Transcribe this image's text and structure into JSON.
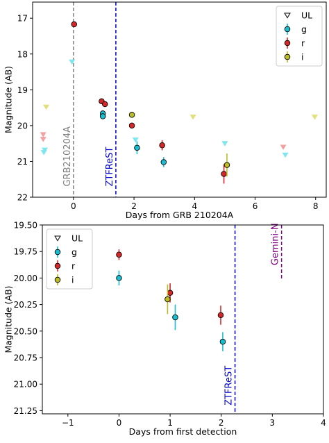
{
  "colors": {
    "g": "#17becf",
    "r": "#d62728",
    "i": "#bcbd22",
    "ul_g": "#7fe6f0",
    "ul_r": "#f2a0a0",
    "ul_i": "#e0e07a",
    "grb_line": "#7f7f7f",
    "ztfrest_line": "#0000cc",
    "gemini_line": "#800080"
  },
  "chart_data": [
    {
      "type": "scatter",
      "xlabel": "Days from GRB 210204A",
      "ylabel": "Magnitude (AB)",
      "xlim": [
        -1.35,
        8.35
      ],
      "ylim": [
        22,
        16.55
      ],
      "y_inverted": true,
      "xticks": [
        0,
        2,
        4,
        6,
        8
      ],
      "yticks": [
        17,
        18,
        19,
        20,
        21,
        22
      ],
      "xtick_labels": [
        "0",
        "2",
        "4",
        "6",
        "8"
      ],
      "ytick_labels": [
        "17",
        "18",
        "19",
        "20",
        "21",
        "22"
      ],
      "legend": {
        "placement": "top-right",
        "entries": [
          {
            "label": "UL",
            "marker": "triangle-down"
          },
          {
            "label": "g",
            "color_key": "g"
          },
          {
            "label": "r",
            "color_key": "r"
          },
          {
            "label": "i",
            "color_key": "i"
          }
        ]
      },
      "vlines": [
        {
          "x": 0,
          "label": "GRB210204A",
          "color_key": "grb_line",
          "style": "dashed",
          "label_y": 21.7
        },
        {
          "x": 1.4,
          "label": "ZTFReST",
          "color_key": "ztfrest_line",
          "style": "dashed",
          "label_y": 21.7
        }
      ],
      "series": [
        {
          "name": "g",
          "color_key": "g",
          "points": [
            {
              "x": 0.97,
              "y": 19.66,
              "err": 0.08
            },
            {
              "x": 0.97,
              "y": 19.74,
              "err": 0.08
            },
            {
              "x": 2.1,
              "y": 20.62,
              "err": 0.18
            },
            {
              "x": 2.98,
              "y": 21.02,
              "err": 0.14
            }
          ]
        },
        {
          "name": "r",
          "color_key": "r",
          "points": [
            {
              "x": 0.02,
              "y": 17.17,
              "err": 0.07
            },
            {
              "x": 0.93,
              "y": 19.32,
              "err": 0.07
            },
            {
              "x": 1.04,
              "y": 19.4,
              "err": 0.07
            },
            {
              "x": 1.93,
              "y": 20.0,
              "err": 0.06
            },
            {
              "x": 2.93,
              "y": 20.55,
              "err": 0.14
            },
            {
              "x": 4.97,
              "y": 21.35,
              "err": 0.27
            }
          ]
        },
        {
          "name": "i",
          "color_key": "i",
          "points": [
            {
              "x": 1.93,
              "y": 19.7,
              "err": 0.08
            },
            {
              "x": 5.07,
              "y": 21.1,
              "err": 0.32
            }
          ]
        }
      ],
      "upper_limits": [
        {
          "x": -0.05,
          "y": 18.22,
          "band": "g"
        },
        {
          "x": -0.95,
          "y": 20.68,
          "band": "g"
        },
        {
          "x": -0.98,
          "y": 20.75,
          "band": "g"
        },
        {
          "x": 2.05,
          "y": 20.4,
          "band": "g"
        },
        {
          "x": 5.0,
          "y": 20.5,
          "band": "g"
        },
        {
          "x": 7.0,
          "y": 20.82,
          "band": "g"
        },
        {
          "x": -1.0,
          "y": 20.25,
          "band": "r"
        },
        {
          "x": -1.0,
          "y": 20.38,
          "band": "r"
        },
        {
          "x": 6.93,
          "y": 20.6,
          "band": "r"
        },
        {
          "x": -0.9,
          "y": 19.48,
          "band": "i"
        },
        {
          "x": 3.95,
          "y": 19.76,
          "band": "i"
        },
        {
          "x": 7.97,
          "y": 19.76,
          "band": "i"
        }
      ]
    },
    {
      "type": "scatter",
      "xlabel": "Days from first detection",
      "ylabel": "Magnitude (AB)",
      "xlim": [
        -1.5,
        4.0
      ],
      "ylim": [
        21.28,
        19.5
      ],
      "y_inverted": true,
      "xticks": [
        -1,
        0,
        1,
        2,
        3,
        4
      ],
      "yticks": [
        19.5,
        19.75,
        20.0,
        20.25,
        20.5,
        20.75,
        21.0,
        21.25
      ],
      "xtick_labels": [
        "−1",
        "0",
        "1",
        "2",
        "3",
        "4"
      ],
      "ytick_labels": [
        "19.50",
        "19.75",
        "20.00",
        "20.25",
        "20.50",
        "20.75",
        "21.00",
        "21.25"
      ],
      "legend": {
        "placement": "top-left",
        "entries": [
          {
            "label": "UL",
            "marker": "triangle-down"
          },
          {
            "label": "g",
            "color_key": "g"
          },
          {
            "label": "r",
            "color_key": "r"
          },
          {
            "label": "i",
            "color_key": "i"
          }
        ]
      },
      "vlines": [
        {
          "x": 2.27,
          "label": "ZTFReST",
          "color_key": "ztfrest_line",
          "style": "dashed",
          "label_y": 21.2,
          "y_from": 21.28,
          "y_to": 19.5
        },
        {
          "x": 3.18,
          "label": "Gemini-N",
          "color_key": "gemini_line",
          "style": "dashed",
          "label_y": 19.88,
          "y_from": 20.02,
          "y_to": 19.5
        }
      ],
      "series": [
        {
          "name": "g",
          "color_key": "g",
          "points": [
            {
              "x": 0.0,
              "y": 20.0,
              "err": 0.07
            },
            {
              "x": 1.1,
              "y": 20.37,
              "err": 0.12
            },
            {
              "x": 2.03,
              "y": 20.6,
              "err": 0.09
            }
          ]
        },
        {
          "name": "r",
          "color_key": "r",
          "points": [
            {
              "x": 0.0,
              "y": 19.78,
              "err": 0.05
            },
            {
              "x": 1.0,
              "y": 20.14,
              "err": 0.09
            },
            {
              "x": 1.99,
              "y": 20.35,
              "err": 0.09
            }
          ]
        },
        {
          "name": "i",
          "color_key": "i",
          "points": [
            {
              "x": 0.95,
              "y": 20.2,
              "err": 0.14
            }
          ]
        }
      ]
    }
  ]
}
